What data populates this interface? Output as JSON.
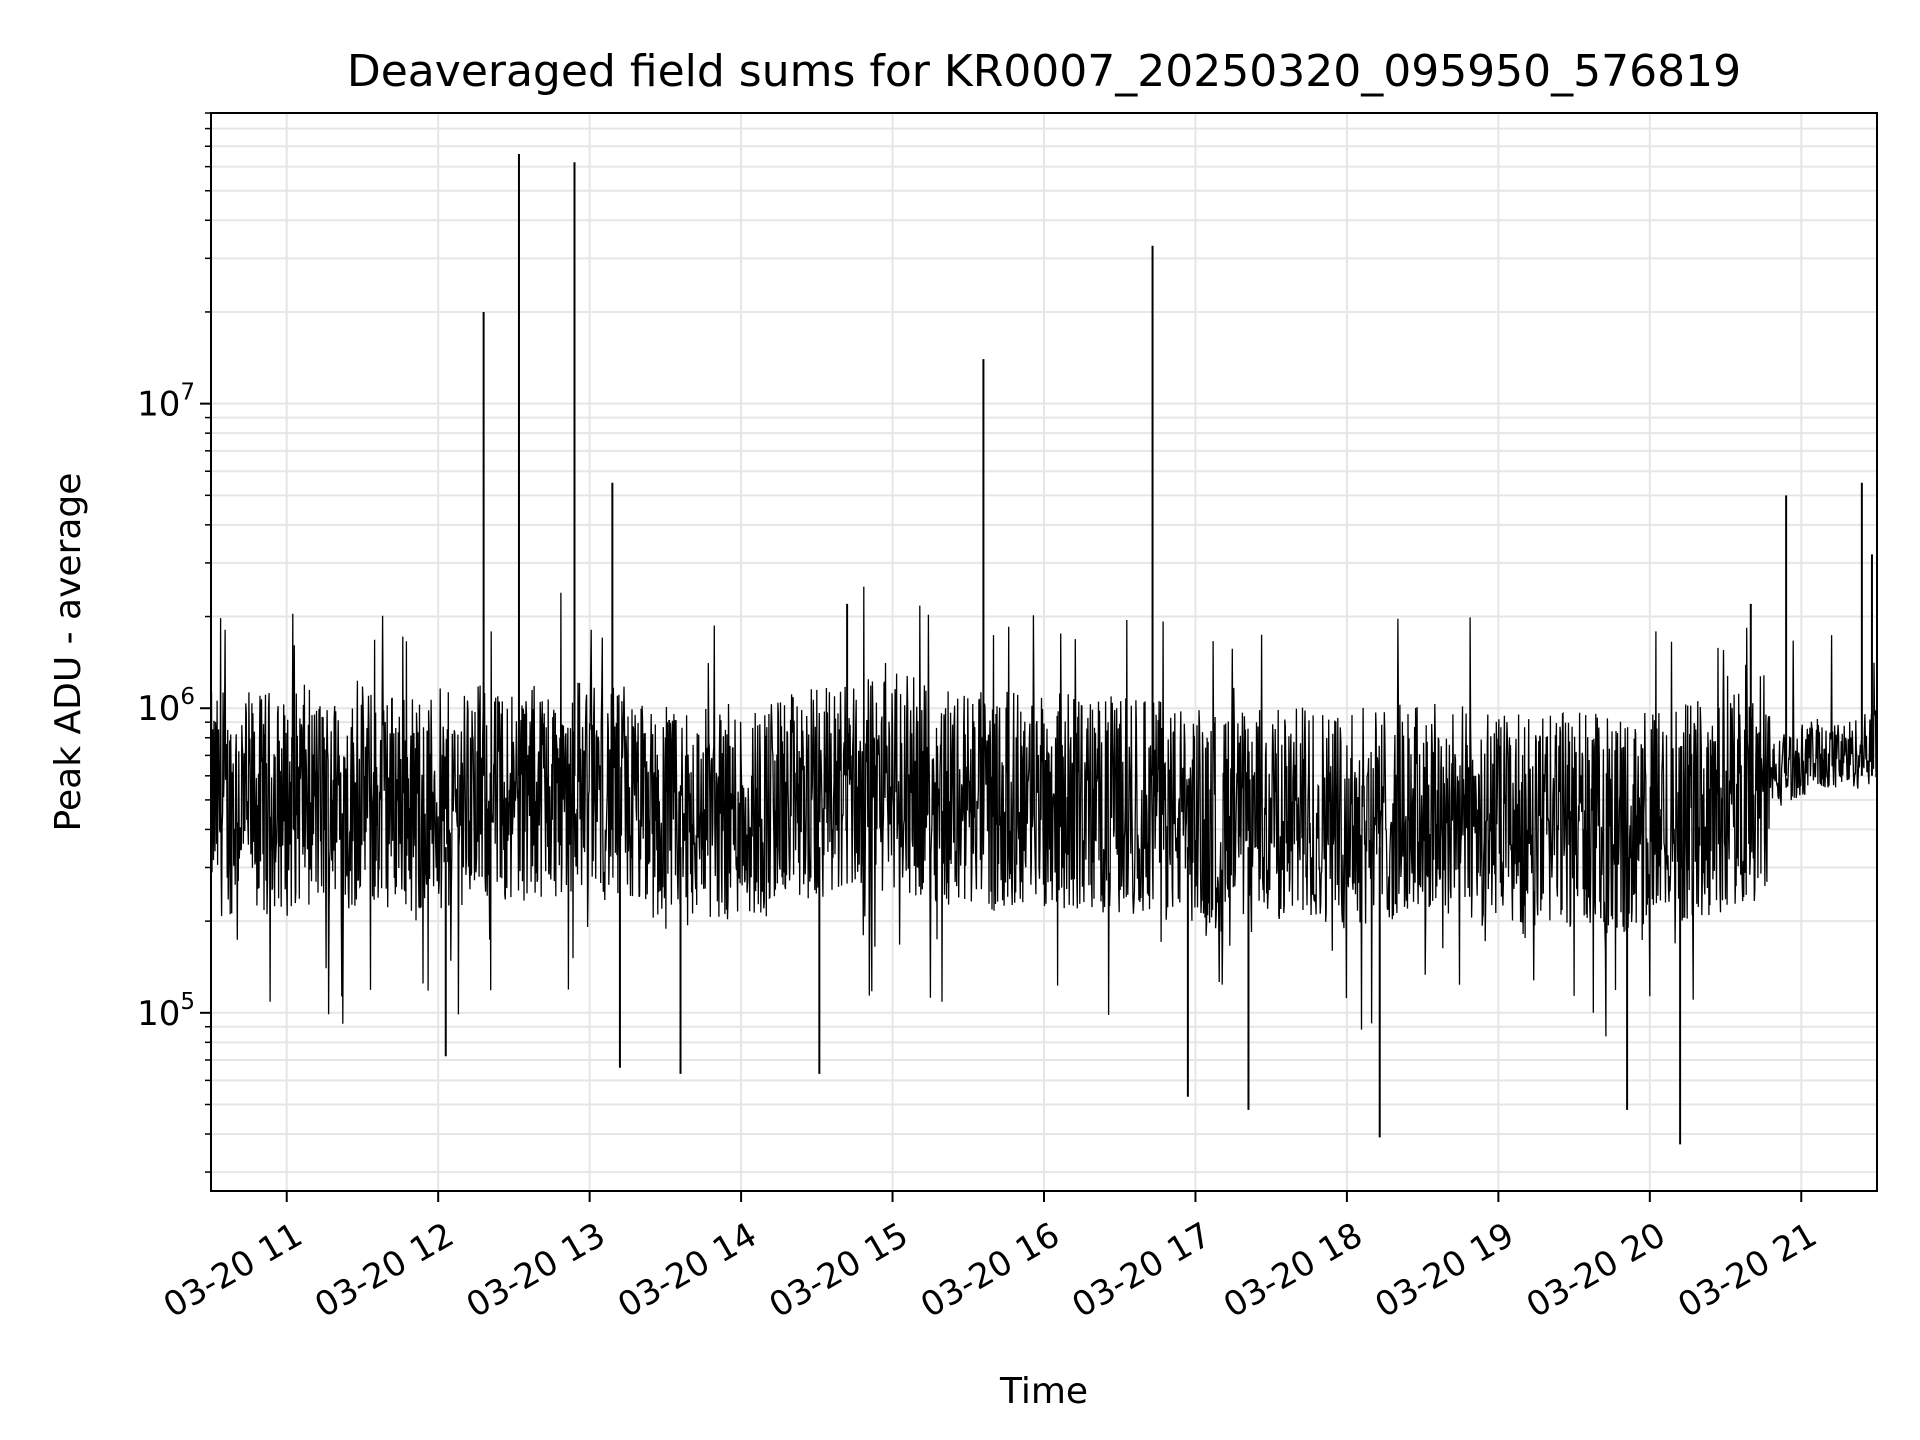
{
  "chart_data": {
    "type": "line",
    "title": "Deaveraged field sums for KR0007_20250320_095950_576819",
    "xlabel": "Time",
    "ylabel": "Peak ADU - average",
    "y_scale": "log",
    "ylim": [
      26000,
      90000000
    ],
    "xlim": [
      "2025-03-20 10:30",
      "2025-03-20 21:30"
    ],
    "grid": true,
    "line_color": "#000000",
    "grid_color": "#e6e6e6",
    "x_ticks": [
      {
        "t": "2025-03-20 11:00",
        "label": "03-20 11"
      },
      {
        "t": "2025-03-20 12:00",
        "label": "03-20 12"
      },
      {
        "t": "2025-03-20 13:00",
        "label": "03-20 13"
      },
      {
        "t": "2025-03-20 14:00",
        "label": "03-20 14"
      },
      {
        "t": "2025-03-20 15:00",
        "label": "03-20 15"
      },
      {
        "t": "2025-03-20 16:00",
        "label": "03-20 16"
      },
      {
        "t": "2025-03-20 17:00",
        "label": "03-20 17"
      },
      {
        "t": "2025-03-20 18:00",
        "label": "03-20 18"
      },
      {
        "t": "2025-03-20 19:00",
        "label": "03-20 19"
      },
      {
        "t": "2025-03-20 20:00",
        "label": "03-20 20"
      },
      {
        "t": "2025-03-20 21:00",
        "label": "03-20 21"
      }
    ],
    "y_ticks": [
      {
        "value": 100000,
        "base": "10",
        "exp": "5"
      },
      {
        "value": 1000000,
        "base": "10",
        "exp": "6"
      },
      {
        "value": 10000000,
        "base": "10",
        "exp": "7"
      }
    ],
    "series": [
      {
        "x": [
          "2025-03-20 10:30",
          "2025-03-20 10:36",
          "2025-03-20 10:42",
          "2025-03-20 10:48",
          "2025-03-20 10:54",
          "2025-03-20 11:00",
          "2025-03-20 11:06",
          "2025-03-20 11:12",
          "2025-03-20 11:18",
          "2025-03-20 11:24",
          "2025-03-20 11:30",
          "2025-03-20 11:36",
          "2025-03-20 11:42",
          "2025-03-20 11:48",
          "2025-03-20 11:54",
          "2025-03-20 12:00",
          "2025-03-20 12:06",
          "2025-03-20 12:12",
          "2025-03-20 12:18",
          "2025-03-20 12:24",
          "2025-03-20 12:30",
          "2025-03-20 12:36",
          "2025-03-20 12:42",
          "2025-03-20 12:48",
          "2025-03-20 12:54",
          "2025-03-20 13:00",
          "2025-03-20 13:06",
          "2025-03-20 13:12",
          "2025-03-20 13:18",
          "2025-03-20 13:24",
          "2025-03-20 13:30",
          "2025-03-20 13:36",
          "2025-03-20 13:42",
          "2025-03-20 13:48",
          "2025-03-20 13:54",
          "2025-03-20 14:00",
          "2025-03-20 14:06",
          "2025-03-20 14:12",
          "2025-03-20 14:18",
          "2025-03-20 14:24",
          "2025-03-20 14:30",
          "2025-03-20 14:36",
          "2025-03-20 14:42",
          "2025-03-20 14:48",
          "2025-03-20 14:54",
          "2025-03-20 15:00",
          "2025-03-20 15:06",
          "2025-03-20 15:12",
          "2025-03-20 15:18",
          "2025-03-20 15:24",
          "2025-03-20 15:30",
          "2025-03-20 15:36",
          "2025-03-20 15:42",
          "2025-03-20 15:48",
          "2025-03-20 15:54",
          "2025-03-20 16:00",
          "2025-03-20 16:06",
          "2025-03-20 16:12",
          "2025-03-20 16:18",
          "2025-03-20 16:24",
          "2025-03-20 16:30",
          "2025-03-20 16:36",
          "2025-03-20 16:42",
          "2025-03-20 16:48",
          "2025-03-20 16:54",
          "2025-03-20 17:00",
          "2025-03-20 17:06",
          "2025-03-20 17:12",
          "2025-03-20 17:18",
          "2025-03-20 17:24",
          "2025-03-20 17:30",
          "2025-03-20 17:36",
          "2025-03-20 17:42",
          "2025-03-20 17:48",
          "2025-03-20 17:54",
          "2025-03-20 18:00",
          "2025-03-20 18:06",
          "2025-03-20 18:12",
          "2025-03-20 18:18",
          "2025-03-20 18:24",
          "2025-03-20 18:30",
          "2025-03-20 18:36",
          "2025-03-20 18:42",
          "2025-03-20 18:48",
          "2025-03-20 18:54",
          "2025-03-20 19:00",
          "2025-03-20 19:06",
          "2025-03-20 19:12",
          "2025-03-20 19:18",
          "2025-03-20 19:24",
          "2025-03-20 19:30",
          "2025-03-20 19:36",
          "2025-03-20 19:42",
          "2025-03-20 19:48",
          "2025-03-20 19:54",
          "2025-03-20 20:00",
          "2025-03-20 20:06",
          "2025-03-20 20:12",
          "2025-03-20 20:18",
          "2025-03-20 20:24",
          "2025-03-20 20:30",
          "2025-03-20 20:36",
          "2025-03-20 20:42",
          "2025-03-20 20:48",
          "2025-03-20 20:54",
          "2025-03-20 21:00",
          "2025-03-20 21:06",
          "2025-03-20 21:12",
          "2025-03-20 21:18",
          "2025-03-20 21:24",
          "2025-03-20 21:30"
        ],
        "y": [
          500000,
          460000,
          520000,
          480000,
          510000,
          470000,
          530000,
          490000,
          500000,
          460000,
          540000,
          480000,
          520000,
          500000,
          470000,
          510000,
          490000,
          530000,
          520000,
          500000,
          540000,
          510000,
          560000,
          520000,
          580000,
          560000,
          530000,
          500000,
          470000,
          450000,
          430000,
          420000,
          440000,
          460000,
          450000,
          470000,
          460000,
          480000,
          500000,
          490000,
          520000,
          540000,
          560000,
          550000,
          570000,
          580000,
          560000,
          540000,
          530000,
          520000,
          510000,
          500000,
          490000,
          500000,
          520000,
          510000,
          500000,
          490000,
          480000,
          470000,
          490000,
          480000,
          470000,
          460000,
          450000,
          440000,
          430000,
          420000,
          430000,
          440000,
          450000,
          440000,
          450000,
          460000,
          440000,
          430000,
          440000,
          450000,
          460000,
          450000,
          460000,
          470000,
          460000,
          450000,
          440000,
          430000,
          420000,
          410000,
          420000,
          430000,
          440000,
          430000,
          420000,
          410000,
          420000,
          430000,
          440000,
          450000,
          460000,
          470000,
          480000,
          520000,
          560000,
          600000,
          640000,
          680000,
          700000,
          690000,
          700000,
          720000,
          760000
        ],
        "spikes_up": [
          {
            "t": "2025-03-20 12:18",
            "y": 20000000
          },
          {
            "t": "2025-03-20 12:32",
            "y": 66000000
          },
          {
            "t": "2025-03-20 12:54",
            "y": 62000000
          },
          {
            "t": "2025-03-20 13:09",
            "y": 5500000
          },
          {
            "t": "2025-03-20 14:42",
            "y": 2200000
          },
          {
            "t": "2025-03-20 15:36",
            "y": 14000000
          },
          {
            "t": "2025-03-20 16:43",
            "y": 33000000
          },
          {
            "t": "2025-03-20 20:40",
            "y": 2200000
          },
          {
            "t": "2025-03-20 20:54",
            "y": 5000000
          },
          {
            "t": "2025-03-20 21:24",
            "y": 5500000
          },
          {
            "t": "2025-03-20 21:28",
            "y": 3200000
          }
        ],
        "spikes_down": [
          {
            "t": "2025-03-20 18:13",
            "y": 39000.0
          },
          {
            "t": "2025-03-20 20:12",
            "y": 37000
          },
          {
            "t": "2025-03-20 19:51",
            "y": 48000
          },
          {
            "t": "2025-03-20 17:21",
            "y": 48000
          },
          {
            "t": "2025-03-20 16:57",
            "y": 53000
          },
          {
            "t": "2025-03-20 14:31",
            "y": 63000
          },
          {
            "t": "2025-03-20 13:36",
            "y": 63000
          },
          {
            "t": "2025-03-20 13:12",
            "y": 66000
          },
          {
            "t": "2025-03-20 12:03",
            "y": 72000
          }
        ]
      }
    ]
  }
}
